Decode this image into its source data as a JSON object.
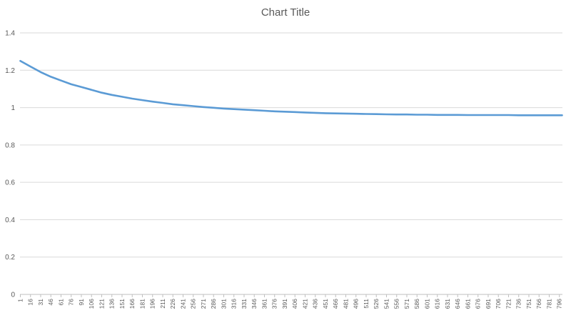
{
  "chart_data": {
    "type": "line",
    "title": "Chart Title",
    "xlabel": "",
    "ylabel": "",
    "ylim": [
      0,
      1.4
    ],
    "yticks": [
      "0",
      "0.2",
      "0.4",
      "0.6",
      "0.8",
      "1",
      "1.2",
      "1.4"
    ],
    "grid": true,
    "legend": "none",
    "x_start": 1,
    "x_end": 800,
    "x_tick_labels": [
      "1",
      "16",
      "31",
      "46",
      "61",
      "76",
      "91",
      "106",
      "121",
      "136",
      "151",
      "166",
      "181",
      "196",
      "211",
      "226",
      "241",
      "256",
      "271",
      "286",
      "301",
      "316",
      "331",
      "346",
      "361",
      "376",
      "391",
      "406",
      "421",
      "436",
      "451",
      "466",
      "481",
      "496",
      "511",
      "526",
      "541",
      "556",
      "571",
      "586",
      "601",
      "616",
      "631",
      "646",
      "661",
      "676",
      "691",
      "706",
      "721",
      "736",
      "751",
      "766",
      "781",
      "796"
    ],
    "series": [
      {
        "color": "#5b9bd5",
        "x": [
          1,
          16,
          31,
          46,
          61,
          76,
          91,
          106,
          121,
          136,
          151,
          166,
          181,
          196,
          211,
          226,
          241,
          256,
          271,
          286,
          301,
          316,
          331,
          346,
          361,
          376,
          391,
          406,
          421,
          436,
          451,
          466,
          481,
          496,
          511,
          526,
          541,
          556,
          571,
          586,
          601,
          616,
          631,
          646,
          661,
          676,
          691,
          706,
          721,
          736,
          751,
          766,
          781,
          796,
          800
        ],
        "values": [
          1.25,
          1.22,
          1.19,
          1.165,
          1.145,
          1.125,
          1.11,
          1.095,
          1.08,
          1.068,
          1.058,
          1.048,
          1.04,
          1.032,
          1.025,
          1.018,
          1.013,
          1.008,
          1.003,
          0.999,
          0.995,
          0.992,
          0.989,
          0.986,
          0.983,
          0.98,
          0.978,
          0.976,
          0.974,
          0.972,
          0.97,
          0.969,
          0.968,
          0.967,
          0.966,
          0.965,
          0.964,
          0.963,
          0.963,
          0.962,
          0.962,
          0.961,
          0.961,
          0.961,
          0.96,
          0.96,
          0.96,
          0.96,
          0.96,
          0.959,
          0.959,
          0.959,
          0.959,
          0.959,
          0.959
        ]
      }
    ]
  }
}
